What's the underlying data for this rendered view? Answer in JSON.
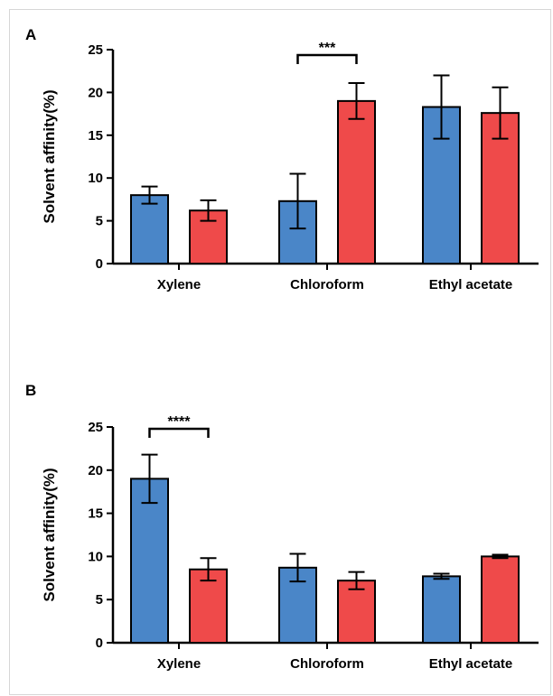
{
  "colors": {
    "series1": "#4a86c8",
    "series2": "#ef4a4a",
    "axis": "#000000"
  },
  "chart_data": [
    {
      "type": "bar",
      "panel": "A",
      "categories": [
        "Xylene",
        "Chloroform",
        "Ethyl acetate"
      ],
      "ylabel": "Solvent affinity(%)",
      "ylim": [
        0,
        25
      ],
      "yticks": [
        0,
        5,
        10,
        15,
        20,
        25
      ],
      "grid": false,
      "series": [
        {
          "values": [
            8.0,
            7.3,
            18.3
          ],
          "errors": [
            1.0,
            3.2,
            3.7
          ]
        },
        {
          "values": [
            6.2,
            19.0,
            17.6
          ],
          "errors": [
            1.2,
            2.1,
            3.0
          ]
        }
      ],
      "significance": [
        {
          "category": "Chloroform",
          "label": "***"
        }
      ]
    },
    {
      "type": "bar",
      "panel": "B",
      "categories": [
        "Xylene",
        "Chloroform",
        "Ethyl acetate"
      ],
      "ylabel": "Solvent affinity(%)",
      "ylim": [
        0,
        25
      ],
      "yticks": [
        0,
        5,
        10,
        15,
        20,
        25
      ],
      "grid": false,
      "series": [
        {
          "values": [
            19.0,
            8.7,
            7.7
          ],
          "errors": [
            2.8,
            1.6,
            0.3
          ]
        },
        {
          "values": [
            8.5,
            7.2,
            10.0
          ],
          "errors": [
            1.3,
            1.0,
            0.2
          ]
        }
      ],
      "significance": [
        {
          "category": "Xylene",
          "label": "****"
        }
      ]
    }
  ]
}
